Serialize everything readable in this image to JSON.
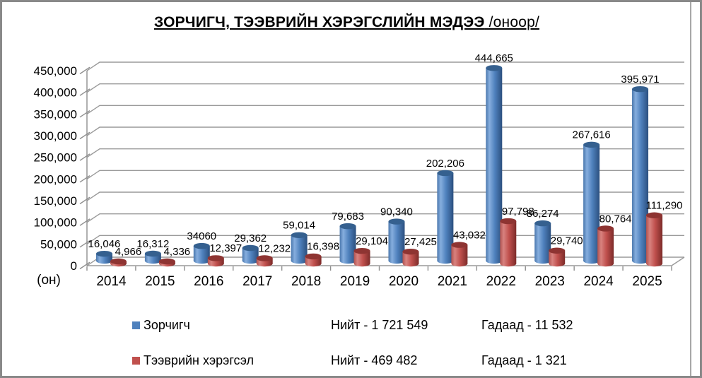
{
  "colors": {
    "frame_border": "#898989",
    "grid_line": "#9a9a9a",
    "axis_line": "#8f8f8f",
    "background": "#ffffff",
    "text": "#000000",
    "series_blue": "#4F81BD",
    "series_red": "#C0504D"
  },
  "title": {
    "main": "ЗОРЧИГЧ, ТЭЭВРИЙН ХЭРЭГСЛИЙН МЭДЭЭ",
    "suffix": " /оноор/"
  },
  "chart_data": {
    "type": "bar",
    "style": "3d-cylinder",
    "title": "ЗОРЧИГЧ, ТЭЭВРИЙН ХЭРЭГСЛИЙН МЭДЭЭ /оноор/",
    "xlabel": "(он)",
    "ylabel": "",
    "ylim": [
      0,
      450000
    ],
    "ytick_step": 50000,
    "ytick_labels": [
      "0",
      "50,000",
      "100,000",
      "150,000",
      "200,000",
      "250,000",
      "300,000",
      "350,000",
      "400,000",
      "450,000"
    ],
    "grid": true,
    "legend_position": "bottom",
    "categories": [
      "2014",
      "2015",
      "2016",
      "2017",
      "2018",
      "2019",
      "2020",
      "2021",
      "2022",
      "2023",
      "2024",
      "2025"
    ],
    "series": [
      {
        "name": "Зорчигч",
        "color": "#4F81BD",
        "top_color": "#35608f",
        "gradient": [
          "#4a77ad",
          "#86aede",
          "#4f81bd",
          "#2b4f7e"
        ],
        "values": [
          16046,
          16312,
          34060,
          29362,
          59014,
          79683,
          90340,
          202206,
          444665,
          86274,
          267616,
          395971
        ],
        "labels": [
          "16,046",
          "16,312",
          "34060",
          "29,362",
          "59,014",
          "79,683",
          "90,340",
          "202,206",
          "444,665",
          "86,274",
          "267,616",
          "395,971"
        ]
      },
      {
        "name": "Тээврийн хэрэгсэл",
        "color": "#C0504D",
        "top_color": "#8e3432",
        "gradient": [
          "#b0524f",
          "#d8827f",
          "#c0504d",
          "#7c2b29"
        ],
        "values": [
          4966,
          4336,
          12397,
          12232,
          16398,
          29104,
          27425,
          43032,
          97798,
          29740,
          80764,
          111290
        ],
        "labels": [
          "4,966",
          "4,336",
          "12,397",
          "12,232",
          "16,398",
          "29,104",
          "27,425",
          "43,032",
          "97,798",
          "29,740",
          "80,764",
          "111,290"
        ]
      }
    ]
  },
  "legend": {
    "rows": [
      {
        "swatch_color": "#4F81BD",
        "label": "Зорчигч",
        "total": "Нийт - 1 721 549",
        "foreign": "Гадаад - 11 532"
      },
      {
        "swatch_color": "#C0504D",
        "label": "Тээврийн хэрэгсэл",
        "total": "Нийт - 469 482",
        "foreign": "Гадаад - 1 321"
      }
    ]
  }
}
